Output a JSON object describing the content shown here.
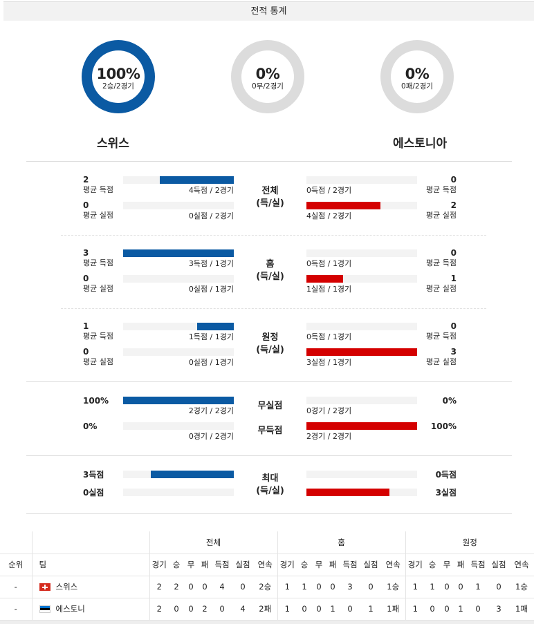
{
  "title": "전적 통계",
  "donuts": [
    {
      "pct": "100%",
      "sub": "2승/2경기",
      "value": 1.0,
      "color": "#0b5aa3"
    },
    {
      "pct": "0%",
      "sub": "0무/2경기",
      "value": 0.0,
      "color": "#dcdcdc"
    },
    {
      "pct": "0%",
      "sub": "0패/2경기",
      "value": 0.0,
      "color": "#dcdcdc"
    }
  ],
  "teams": {
    "home": "스위스",
    "away": "에스토니아"
  },
  "sections": [
    {
      "center": [
        "전체",
        "(득/실)"
      ],
      "home": {
        "scored": {
          "num": "2",
          "lbl": "평균 득점",
          "bar_lbl": "4득점 / 2경기",
          "frac": 0.667
        },
        "conceded": {
          "num": "0",
          "lbl": "평균 실점",
          "bar_lbl": "0실점 / 2경기",
          "frac": 0.0
        }
      },
      "away": {
        "scored": {
          "num": "0",
          "lbl": "평균 득점",
          "bar_lbl": "0득점 / 2경기",
          "frac": 0.0
        },
        "conceded": {
          "num": "2",
          "lbl": "평균 실점",
          "bar_lbl": "4실점 / 2경기",
          "frac": 0.667
        }
      }
    },
    {
      "center": [
        "홈",
        "(득/실)"
      ],
      "home": {
        "scored": {
          "num": "3",
          "lbl": "평균 득점",
          "bar_lbl": "3득점 / 1경기",
          "frac": 1.0
        },
        "conceded": {
          "num": "0",
          "lbl": "평균 실점",
          "bar_lbl": "0실점 / 1경기",
          "frac": 0.0
        }
      },
      "away": {
        "scored": {
          "num": "0",
          "lbl": "평균 득점",
          "bar_lbl": "0득점 / 1경기",
          "frac": 0.0
        },
        "conceded": {
          "num": "1",
          "lbl": "평균 실점",
          "bar_lbl": "1실점 / 1경기",
          "frac": 0.333
        }
      }
    },
    {
      "center": [
        "원정",
        "(득/실)"
      ],
      "home": {
        "scored": {
          "num": "1",
          "lbl": "평균 득점",
          "bar_lbl": "1득점 / 1경기",
          "frac": 0.333
        },
        "conceded": {
          "num": "0",
          "lbl": "평균 실점",
          "bar_lbl": "0실점 / 1경기",
          "frac": 0.0
        }
      },
      "away": {
        "scored": {
          "num": "0",
          "lbl": "평균 득점",
          "bar_lbl": "0득점 / 1경기",
          "frac": 0.0
        },
        "conceded": {
          "num": "3",
          "lbl": "평균 실점",
          "bar_lbl": "3실점 / 1경기",
          "frac": 1.0
        }
      }
    }
  ],
  "clean": {
    "label_cs": "무실점",
    "label_ns": "무득점",
    "home_cs": {
      "pct": "100%",
      "bar_lbl": "2경기 / 2경기",
      "frac": 1.0
    },
    "home_ns": {
      "pct": "0%",
      "bar_lbl": "0경기 / 2경기",
      "frac": 0.0
    },
    "away_cs": {
      "pct": "0%",
      "bar_lbl": "0경기 / 2경기",
      "frac": 0.0
    },
    "away_ns": {
      "pct": "100%",
      "bar_lbl": "2경기 / 2경기",
      "frac": 1.0
    }
  },
  "max": {
    "center": [
      "최대",
      "(득/실)"
    ],
    "home_scored": {
      "val": "3득점",
      "frac": 0.75
    },
    "home_conceded": {
      "val": "0실점",
      "frac": 0.0
    },
    "away_scored": {
      "val": "0득점",
      "frac": 0.0
    },
    "away_conceded": {
      "val": "3실점",
      "frac": 0.75
    }
  },
  "table": {
    "groups": [
      "전체",
      "홈",
      "원정"
    ],
    "headers": {
      "rank": "순위",
      "team": "팀",
      "cols": [
        "경기",
        "승",
        "무",
        "패",
        "득점",
        "실점",
        "연속"
      ]
    },
    "rows": [
      {
        "rank": "-",
        "team": "스위스",
        "flag": "ch",
        "all": [
          "2",
          "2",
          "0",
          "0",
          "4",
          "0",
          "2승"
        ],
        "home": [
          "1",
          "1",
          "0",
          "0",
          "3",
          "0",
          "1승"
        ],
        "away": [
          "1",
          "1",
          "0",
          "0",
          "1",
          "0",
          "1승"
        ]
      },
      {
        "rank": "-",
        "team": "에스토니",
        "flag": "ee",
        "all": [
          "2",
          "0",
          "0",
          "2",
          "0",
          "4",
          "2패"
        ],
        "home": [
          "1",
          "0",
          "0",
          "1",
          "0",
          "1",
          "1패"
        ],
        "away": [
          "1",
          "0",
          "0",
          "1",
          "0",
          "3",
          "1패"
        ]
      }
    ]
  }
}
